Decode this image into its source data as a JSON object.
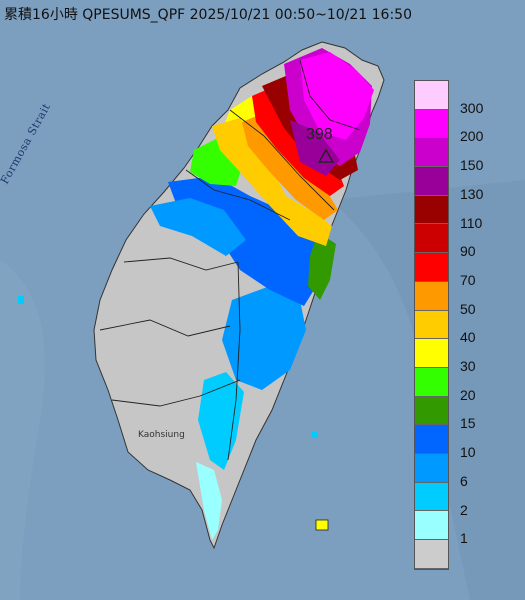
{
  "header": {
    "title": "累積16小時 QPESUMS_QPF 2025/10/21 00:50~10/21 16:50"
  },
  "map": {
    "strait_label": "Formosa Strait",
    "city_label": "Kaohsiung",
    "max_value": "398",
    "colors": {
      "sea": "#7d9fbf",
      "land": "#c6c6c6",
      "border": "#222222"
    }
  },
  "legend": {
    "items": [
      {
        "label": "300",
        "color": "#ffccff"
      },
      {
        "label": "200",
        "color": "#ff00ff"
      },
      {
        "label": "150",
        "color": "#cc00cc"
      },
      {
        "label": "130",
        "color": "#990099"
      },
      {
        "label": "110",
        "color": "#990000"
      },
      {
        "label": "90",
        "color": "#cc0000"
      },
      {
        "label": "70",
        "color": "#ff0000"
      },
      {
        "label": "50",
        "color": "#ff9900"
      },
      {
        "label": "40",
        "color": "#ffcc00"
      },
      {
        "label": "30",
        "color": "#ffff00"
      },
      {
        "label": "20",
        "color": "#33ff00"
      },
      {
        "label": "15",
        "color": "#339900"
      },
      {
        "label": "10",
        "color": "#0066ff"
      },
      {
        "label": "6",
        "color": "#0099ff"
      },
      {
        "label": "2",
        "color": "#00ccff"
      },
      {
        "label": "1",
        "color": "#99ffff"
      },
      {
        "label": "",
        "color": "#cccccc"
      }
    ]
  }
}
